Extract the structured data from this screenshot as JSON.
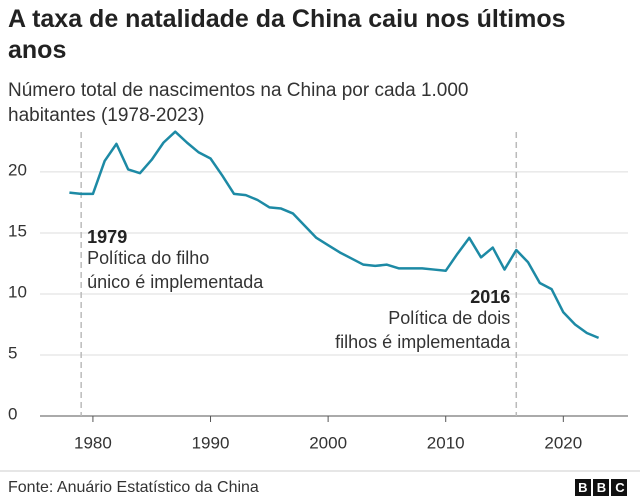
{
  "chart_data": {
    "type": "line",
    "title": "A taxa de natalidade da China caiu nos últimos anos",
    "subtitle": "Número total de nascimentos na China por cada 1.000 habitantes (1978-2023)",
    "x": [
      1978,
      1979,
      1980,
      1981,
      1982,
      1983,
      1984,
      1985,
      1986,
      1987,
      1988,
      1989,
      1990,
      1991,
      1992,
      1993,
      1994,
      1995,
      1996,
      1997,
      1998,
      1999,
      2000,
      2001,
      2002,
      2003,
      2004,
      2005,
      2006,
      2007,
      2008,
      2009,
      2010,
      2011,
      2012,
      2013,
      2014,
      2015,
      2016,
      2017,
      2018,
      2019,
      2020,
      2021,
      2022,
      2023
    ],
    "series": [
      {
        "color": "#1d8aa5",
        "values": [
          18.3,
          18.2,
          18.2,
          20.9,
          22.3,
          20.2,
          19.9,
          21.0,
          22.4,
          23.3,
          22.4,
          21.6,
          21.1,
          19.7,
          18.2,
          18.1,
          17.7,
          17.1,
          17.0,
          16.6,
          15.6,
          14.6,
          14.0,
          13.4,
          12.9,
          12.4,
          12.3,
          12.4,
          12.1,
          12.1,
          12.1,
          12.0,
          11.9,
          13.3,
          14.6,
          13.0,
          13.8,
          12.0,
          13.6,
          12.6,
          10.9,
          10.4,
          8.5,
          7.5,
          6.8,
          6.4
        ]
      }
    ],
    "xlim": [
      1975.5,
      2025.5
    ],
    "xticks": [
      1980,
      1990,
      2000,
      2010,
      2020
    ],
    "ylim": [
      0,
      23.6
    ],
    "yticks": [
      0,
      5,
      10,
      15,
      20
    ],
    "grid": true,
    "annotations": [
      {
        "x": 1979,
        "label": "1979",
        "text": [
          "Política do filho",
          "único é implementada"
        ]
      },
      {
        "x": 2016,
        "label": "2016",
        "text": [
          "Política de dois",
          "filhos é implementada"
        ]
      }
    ],
    "source": "Fonte: Anuário Estatístico da China",
    "logo": "BBC"
  }
}
